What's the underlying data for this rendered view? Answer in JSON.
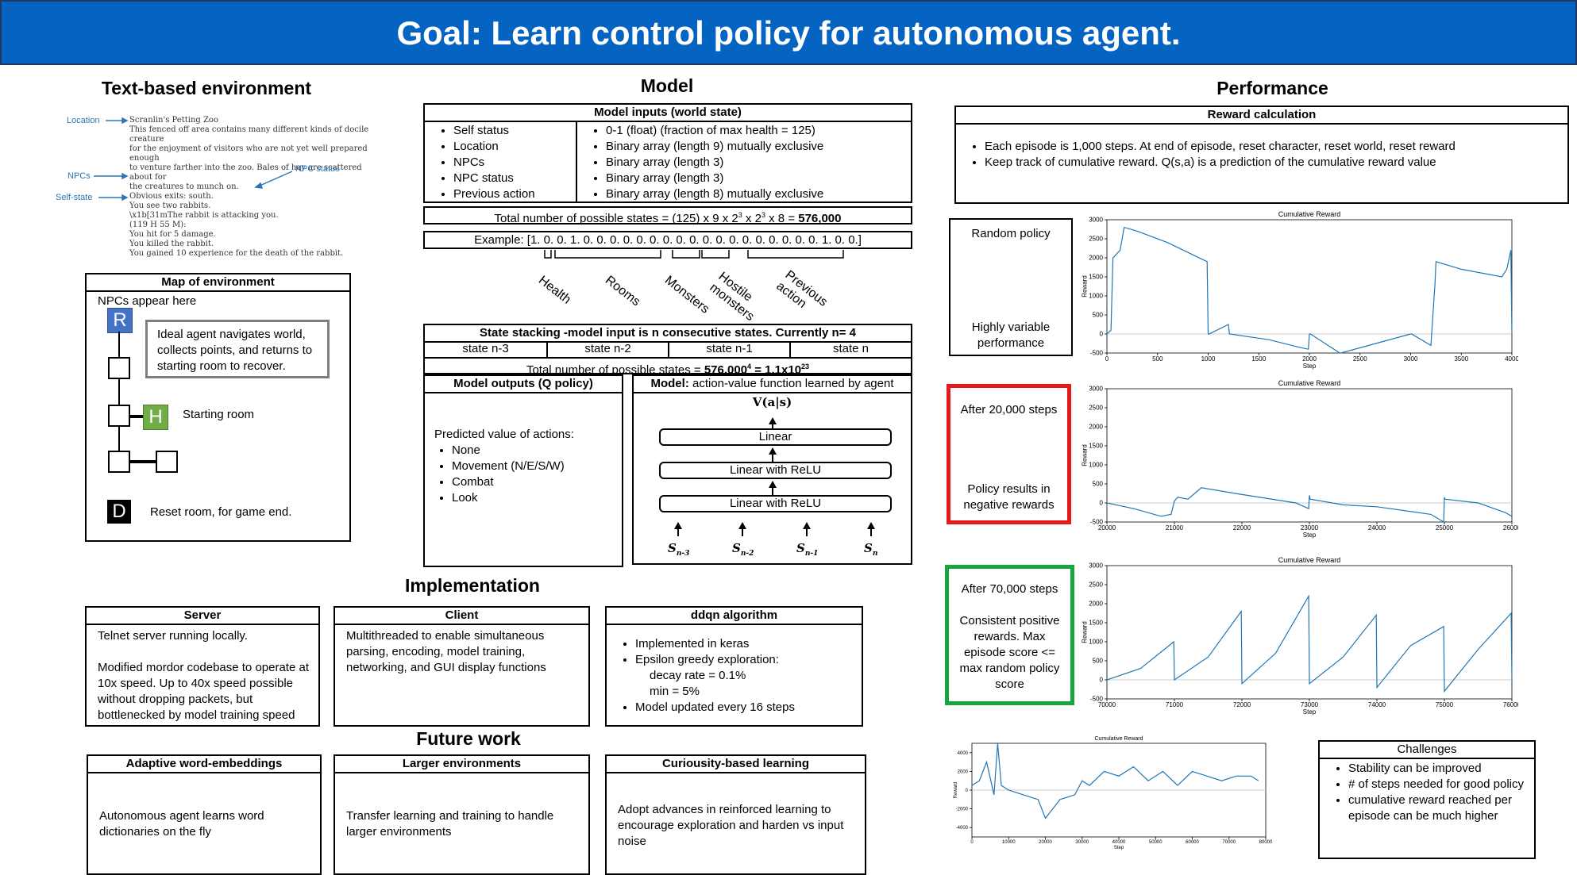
{
  "banner": {
    "title": "Goal: Learn control policy for autonomous agent.",
    "color": "#0563c1"
  },
  "env": {
    "title": "Text-based environment",
    "labels": {
      "location": "Location",
      "npcs": "NPCs",
      "self_state": "Self-state",
      "npc_status": "NPC status"
    },
    "lines": [
      "Scranlin's Petting Zoo",
      "This fenced off area contains many different kinds of docile creature",
      "for the enjoyment of visitors who are not yet well prepared enough",
      "to venture farther into the zoo.  Bales of hay are scattered about for",
      "the creatures to munch on.",
      "Obvious exits: south.",
      "You see two rabbits.",
      "\\x1b[31mThe rabbit is attacking you.",
      "(119 H 55 M):",
      "You hit for 5 damage.",
      "You killed the rabbit.",
      "You gained 10 experience for the death of the rabbit."
    ]
  },
  "map": {
    "header": "Map of environment",
    "npcs_note": "NPCs appear here",
    "r_label": "R",
    "h_label": "H",
    "d_label": "D",
    "ideal_text": "Ideal agent navigates world, collects points, and returns to starting room to recover.",
    "starting_room": "Starting room",
    "reset_room": "Reset room, for game end.",
    "r_color": "#4472c4",
    "h_color": "#70ad47"
  },
  "model": {
    "title": "Model",
    "inputs_header": "Model inputs (world state)",
    "inputs_left": [
      "Self status",
      "Location",
      "NPCs",
      "NPC status",
      "Previous action"
    ],
    "inputs_right": [
      "0-1 (float) (fraction of max health = 125)",
      "Binary array (length 9) mutually exclusive",
      "Binary array (length 3)",
      "Binary array (length 3)",
      "Binary array (length 8) mutually exclusive"
    ],
    "total_states_prefix": "Total number of possible states = (125) x 9 x 2",
    "total_states_mid": " x 2",
    "total_states_mid2": " x 8 = ",
    "total_states_exp": "3",
    "total_states_value": "576,000",
    "example": "Example: [1. 0. 0. 1. 0. 0. 0. 0. 0. 0. 0. 0. 0. 0. 0. 0. 0. 0. 0. 0. 0. 0. 1. 0. 0.]",
    "groups": [
      "Health",
      "Rooms",
      "Monsters",
      "Hostile monsters",
      "Previous action"
    ],
    "stacking_header": "State stacking -model input is n consecutive states. Currently n= 4",
    "stack_states": [
      "state n-3",
      "state n-2",
      "state n-1",
      "state n"
    ],
    "stack_total_prefix": "Total number of possible states = ",
    "stack_total_value": "576,000",
    "stack_total_exp": "4",
    "stack_total_eq": " = 1.1x10",
    "stack_total_exp2": "23",
    "outputs_header": "Model outputs (Q policy)",
    "outputs_intro": "Predicted value of actions:",
    "outputs": [
      "None",
      "Movement (N/E/S/W)",
      "Combat",
      "Look"
    ],
    "nn_header_bold": "Model:",
    "nn_header_rest": " action-value function learned by agent",
    "nn_top": "V(a|s)",
    "layers": [
      "Linear",
      "Linear with ReLU",
      "Linear with ReLU"
    ],
    "inputs_s": [
      "S",
      "S",
      "S",
      "S"
    ],
    "inputs_sub": [
      "n-3",
      "n-2",
      "n-1",
      "n"
    ]
  },
  "impl": {
    "title": "Implementation",
    "server_header": "Server",
    "server_p1": "Telnet server running locally.",
    "server_p2": "Modified mordor codebase to operate at 10x speed. Up to 40x speed possible without dropping packets, but bottlenecked by model training speed",
    "client_header": "Client",
    "client_text": "Multithreaded to enable simultaneous parsing, encoding, model training, networking, and GUI display functions",
    "ddqn_header": "ddqn algorithm",
    "ddqn_b1": "Implemented in keras",
    "ddqn_b2": "Epsilon greedy exploration:",
    "ddqn_decay": "decay rate = 0.1%",
    "ddqn_min": "min = 5%",
    "ddqn_b3": "Model updated every 16 steps"
  },
  "future": {
    "title": "Future work",
    "a_header": "Adaptive word-embeddings",
    "a_text": "Autonomous agent learns word dictionaries on the fly",
    "b_header": "Larger environments",
    "b_text": "Transfer learning and training to handle larger environments",
    "c_header": "Curiousity-based learning",
    "c_text": "Adopt advances in reinforced learning to encourage exploration and harden vs input noise"
  },
  "perf": {
    "title": "Performance",
    "reward_header": "Reward calculation",
    "reward_b1": "Each episode is 1,000 steps. At end of episode, reset character, reset world, reset reward",
    "reward_b2": "Keep track of cumulative reward. Q(s,a) is a prediction of the cumulative reward value",
    "p1_top": "Random policy",
    "p1_bottom": "Highly variable performance",
    "p2_top": "After 20,000 steps",
    "p2_bottom": "Policy results in negative rewards",
    "p3_top": "After 70,000 steps",
    "p3_bottom": "Consistent positive rewards. Max episode score <= max random policy score",
    "red": "#e31b1b",
    "green": "#17a540",
    "challenges_header": "Challenges",
    "challenges": [
      "Stability can be improved",
      "# of steps needed for good policy",
      "cumulative reward reached per episode can be much higher"
    ]
  },
  "chart_data": [
    {
      "type": "line",
      "title": "Cumulative Reward",
      "xlabel": "Step",
      "ylabel": "Reward",
      "xlim": [
        0,
        4000
      ],
      "ylim": [
        -500,
        3000
      ],
      "xticks": [
        "0",
        "500",
        "1000",
        "1500",
        "2000",
        "2500",
        "3000",
        "3500",
        "4000"
      ],
      "yticks": [
        "-500",
        "0",
        "500",
        "1000",
        "1500",
        "2000",
        "2500",
        "3000"
      ],
      "x": [
        0,
        40,
        60,
        130,
        170,
        300,
        600,
        950,
        990,
        1000,
        1010,
        1200,
        1210,
        1600,
        1900,
        1990,
        2000,
        2010,
        2300,
        2310,
        3000,
        3010,
        3200,
        3240,
        3250,
        3500,
        3900,
        3950,
        3990,
        4000
      ],
      "y": [
        0,
        100,
        2000,
        2200,
        2800,
        2700,
        2400,
        1950,
        1900,
        0,
        0,
        250,
        0,
        -150,
        -350,
        -400,
        0,
        0,
        -500,
        -500,
        0,
        0,
        -300,
        1300,
        1900,
        1700,
        1500,
        1700,
        2200,
        0
      ]
    },
    {
      "type": "line",
      "title": "Cumulative Reward",
      "xlabel": "Step",
      "ylabel": "Reward",
      "xlim": [
        20000,
        26000
      ],
      "ylim": [
        -500,
        3000
      ],
      "xticks": [
        "20000",
        "21000",
        "22000",
        "23000",
        "24000",
        "25000",
        "26000"
      ],
      "yticks": [
        "-500",
        "0",
        "500",
        "1000",
        "1500",
        "2000",
        "2500",
        "3000"
      ],
      "x": [
        20000,
        20400,
        20800,
        20950,
        21000,
        21050,
        21200,
        21400,
        21900,
        22800,
        22990,
        23000,
        23010,
        23500,
        24000,
        24800,
        24990,
        25000,
        25010,
        25500,
        25900,
        26000
      ],
      "y": [
        0,
        -150,
        -350,
        -300,
        50,
        150,
        100,
        400,
        250,
        0,
        -150,
        200,
        100,
        -50,
        -100,
        -300,
        -500,
        150,
        100,
        0,
        -250,
        -350
      ]
    },
    {
      "type": "line",
      "title": "Cumulative Reward",
      "xlabel": "Step",
      "ylabel": "Reward",
      "xlim": [
        70000,
        76000
      ],
      "ylim": [
        -500,
        3000
      ],
      "xticks": [
        "70000",
        "71000",
        "72000",
        "73000",
        "74000",
        "75000",
        "76000"
      ],
      "yticks": [
        "-500",
        "0",
        "500",
        "1000",
        "1500",
        "2000",
        "2500",
        "3000"
      ],
      "x": [
        70000,
        70500,
        70990,
        71000,
        71500,
        71990,
        72000,
        72500,
        72990,
        73000,
        73500,
        73990,
        74000,
        74500,
        74990,
        75000,
        75500,
        75990,
        76000
      ],
      "y": [
        0,
        300,
        1000,
        0,
        600,
        1800,
        -100,
        700,
        2200,
        -100,
        600,
        1700,
        -200,
        900,
        1400,
        -300,
        800,
        1750,
        0
      ]
    },
    {
      "type": "line",
      "title": "Cumulative Reward",
      "xlabel": "Step",
      "ylabel": "Reward",
      "xlim": [
        0,
        80000
      ],
      "ylim": [
        -5000,
        5000
      ],
      "xticks": [
        "0",
        "10000",
        "20000",
        "30000",
        "40000",
        "50000",
        "60000",
        "70000",
        "80000"
      ],
      "yticks": [
        "-4000",
        "-2000",
        "0",
        "2000",
        "4000"
      ],
      "x": [
        0,
        2000,
        4000,
        6000,
        7000,
        8000,
        10000,
        14000,
        18000,
        20000,
        24000,
        28000,
        30000,
        32000,
        36000,
        40000,
        44000,
        48000,
        52000,
        56000,
        60000,
        64000,
        68000,
        72000,
        76000,
        78000
      ],
      "y": [
        500,
        1000,
        3000,
        -500,
        5000,
        500,
        0,
        -500,
        -1000,
        -3000,
        -1000,
        -500,
        1000,
        500,
        2000,
        1500,
        2500,
        1000,
        2000,
        500,
        2000,
        1500,
        1000,
        1500,
        1500,
        1000
      ]
    }
  ]
}
